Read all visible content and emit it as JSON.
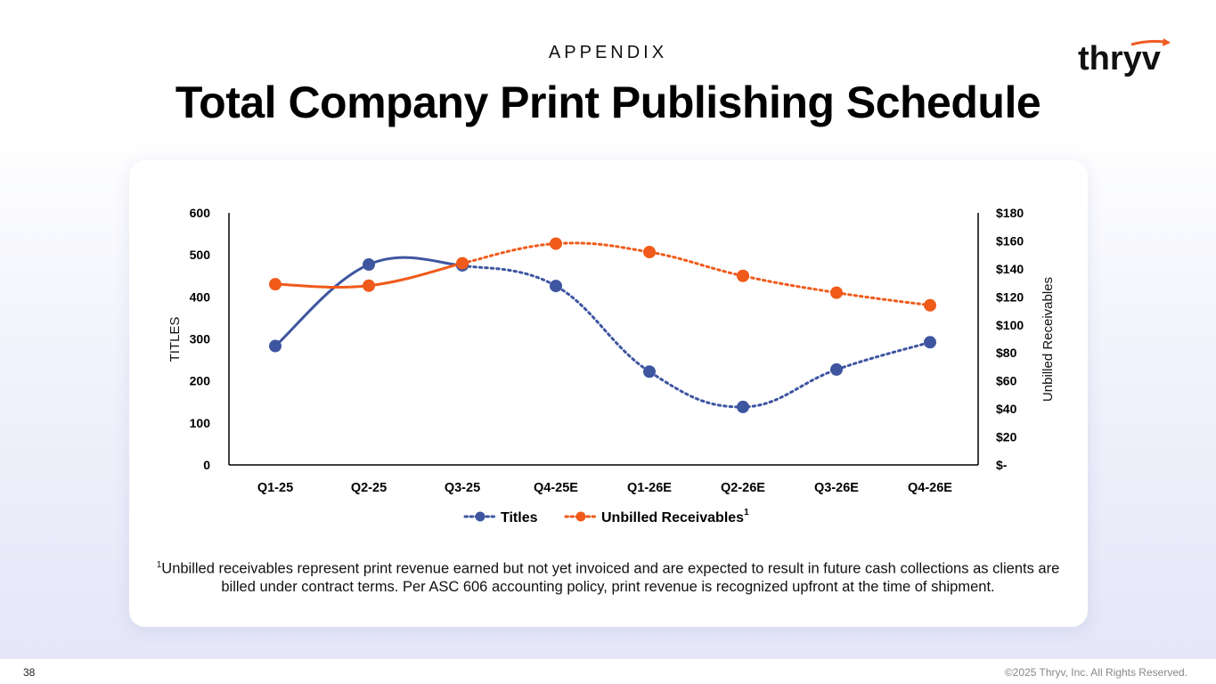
{
  "header": {
    "eyebrow": "APPENDIX",
    "title": "Total Company Print Publishing Schedule"
  },
  "logo": {
    "text": "thryv",
    "accent_color": "#f05a22"
  },
  "chart_data": {
    "type": "line",
    "categories": [
      "Q1-25",
      "Q2-25",
      "Q3-25",
      "Q4-25E",
      "Q1-26E",
      "Q2-26E",
      "Q3-26E",
      "Q4-26E"
    ],
    "y_left": {
      "label": "TITLES",
      "range": [
        0,
        600
      ],
      "ticks": [
        "0",
        "100",
        "200",
        "300",
        "400",
        "500",
        "600"
      ]
    },
    "y_right": {
      "label": "Unbilled Receivables",
      "range": [
        0,
        180
      ],
      "ticks": [
        "$-",
        "$20",
        "$40",
        "$60",
        "$80",
        "$100",
        "$120",
        "$140",
        "$160",
        "$180"
      ]
    },
    "series": [
      {
        "name": "Titles",
        "axis": "left",
        "color": "#3e55a0",
        "values": [
          283,
          477,
          475,
          426,
          222,
          138,
          227,
          292
        ],
        "actual_through_index": 2
      },
      {
        "name": "Unbilled Receivables",
        "name_superscript": "1",
        "axis": "right",
        "color": "#f05a1a",
        "values": [
          129,
          128,
          144,
          158,
          152,
          135,
          123,
          114
        ],
        "actual_through_index": 2
      }
    ],
    "legend_position": "bottom",
    "grid": false
  },
  "footnote": {
    "marker": "1",
    "text": "Unbilled receivables represent print revenue earned but not yet invoiced and are expected to result in future cash collections as clients are billed under contract terms. Per ASC 606 accounting policy, print revenue is recognized upfront at the time of shipment."
  },
  "footer": {
    "page_number": "38",
    "copyright": "©2025 Thryv, Inc. All Rights Reserved."
  }
}
